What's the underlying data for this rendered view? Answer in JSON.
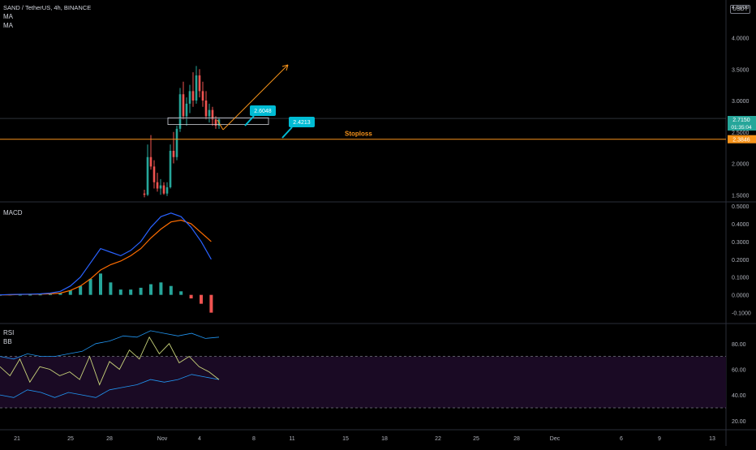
{
  "header": {
    "symbol": "SAND / TetherUS, 4h, BINANCE",
    "indicators": [
      "MA",
      "MA"
    ],
    "currency": "USDT"
  },
  "colors": {
    "up": "#26a69a",
    "down": "#ef5350",
    "orange": "#f7931a",
    "teal": "#00bcd4",
    "macd": "#2962ff",
    "signal": "#ff6d00",
    "rsi": "#c8d37a",
    "bb": "#2196f3",
    "rsiBand": "#1a0a24"
  },
  "price_label": {
    "value": "2.7150",
    "countdown": "01:35:04"
  },
  "stoploss_tag": "2.3846",
  "annotations": {
    "stoploss": "Stoploss",
    "callout1": "2.6048",
    "callout2": "2.4213"
  },
  "macd_label": "MACD",
  "rsi_labels": [
    "RSI",
    "BB"
  ],
  "chart_data": [
    {
      "type": "candlestick",
      "title": "SAND / TetherUS, 4h, BINANCE",
      "y_ticks": [
        "1.5000",
        "2.0000",
        "2.5000",
        "3.0000",
        "3.5000",
        "4.0000",
        "4.5000"
      ],
      "ylim": [
        1.4,
        4.6
      ],
      "x_ticks": [
        "21",
        "25",
        "28",
        "Nov",
        "4",
        "8",
        "11",
        "15",
        "18",
        "22",
        "25",
        "28",
        "Dec",
        "6",
        "9",
        "13"
      ],
      "ohlc": [
        [
          1.52,
          1.58,
          1.46,
          1.5
        ],
        [
          1.5,
          2.3,
          1.48,
          2.1
        ],
        [
          2.1,
          2.45,
          1.9,
          1.95
        ],
        [
          1.95,
          2.05,
          1.6,
          1.7
        ],
        [
          1.7,
          1.85,
          1.55,
          1.6
        ],
        [
          1.6,
          1.75,
          1.5,
          1.65
        ],
        [
          1.65,
          1.7,
          1.5,
          1.52
        ],
        [
          1.52,
          1.7,
          1.48,
          1.62
        ],
        [
          1.62,
          2.3,
          1.6,
          2.2
        ],
        [
          2.2,
          2.5,
          2.0,
          2.1
        ],
        [
          2.1,
          2.6,
          2.05,
          2.55
        ],
        [
          2.55,
          3.2,
          2.5,
          3.1
        ],
        [
          3.1,
          3.3,
          2.7,
          2.75
        ],
        [
          2.75,
          3.05,
          2.6,
          2.95
        ],
        [
          2.95,
          3.25,
          2.8,
          3.15
        ],
        [
          3.15,
          3.45,
          2.9,
          3.0
        ],
        [
          3.0,
          3.55,
          2.95,
          3.4
        ],
        [
          3.4,
          3.5,
          3.05,
          3.15
        ],
        [
          3.15,
          3.3,
          2.9,
          3.0
        ],
        [
          3.0,
          3.15,
          2.7,
          2.75
        ],
        [
          2.75,
          2.95,
          2.65,
          2.85
        ],
        [
          2.85,
          2.9,
          2.6,
          2.7
        ],
        [
          2.7,
          2.75,
          2.55,
          2.6
        ],
        [
          2.6,
          2.72,
          2.55,
          2.7
        ]
      ],
      "levels": {
        "stoploss": 2.3846,
        "current": 2.715,
        "zone": [
          2.6048,
          2.7
        ]
      }
    },
    {
      "type": "line",
      "title": "MACD",
      "y_ticks": [
        "-0.1000",
        "0.0000",
        "0.1000",
        "0.2000",
        "0.3000",
        "0.4000",
        "0.5000"
      ],
      "ylim": [
        -0.12,
        0.5
      ],
      "macd": [
        0.0,
        0.002,
        0.003,
        0.004,
        0.006,
        0.01,
        0.02,
        0.05,
        0.1,
        0.18,
        0.26,
        0.24,
        0.22,
        0.25,
        0.3,
        0.38,
        0.44,
        0.46,
        0.44,
        0.38,
        0.3,
        0.2
      ],
      "signal": [
        0.0,
        0.0,
        0.002,
        0.003,
        0.004,
        0.006,
        0.01,
        0.025,
        0.05,
        0.09,
        0.14,
        0.17,
        0.19,
        0.22,
        0.26,
        0.32,
        0.37,
        0.41,
        0.42,
        0.4,
        0.35,
        0.3
      ],
      "hist": [
        0.0,
        0.002,
        0.001,
        0.001,
        0.002,
        0.004,
        0.01,
        0.025,
        0.05,
        0.09,
        0.12,
        0.07,
        0.03,
        0.03,
        0.04,
        0.06,
        0.07,
        0.05,
        0.02,
        -0.02,
        -0.05,
        -0.1
      ]
    },
    {
      "type": "line",
      "title": "RSI",
      "y_ticks": [
        "20.00",
        "40.00",
        "60.00",
        "80.00"
      ],
      "ylim": [
        18,
        95
      ],
      "band": [
        30,
        70
      ],
      "rsi": [
        62,
        55,
        68,
        50,
        62,
        60,
        55,
        58,
        52,
        70,
        48,
        66,
        60,
        75,
        68,
        85,
        72,
        80,
        65,
        70,
        62,
        58,
        52
      ],
      "bb_upper": [
        70,
        68,
        72,
        70,
        70,
        72,
        74,
        80,
        82,
        86,
        85,
        90,
        88,
        86,
        88,
        84,
        85
      ],
      "bb_lower": [
        40,
        38,
        44,
        42,
        38,
        42,
        40,
        38,
        44,
        46,
        48,
        52,
        50,
        52,
        56,
        54,
        52
      ]
    }
  ]
}
